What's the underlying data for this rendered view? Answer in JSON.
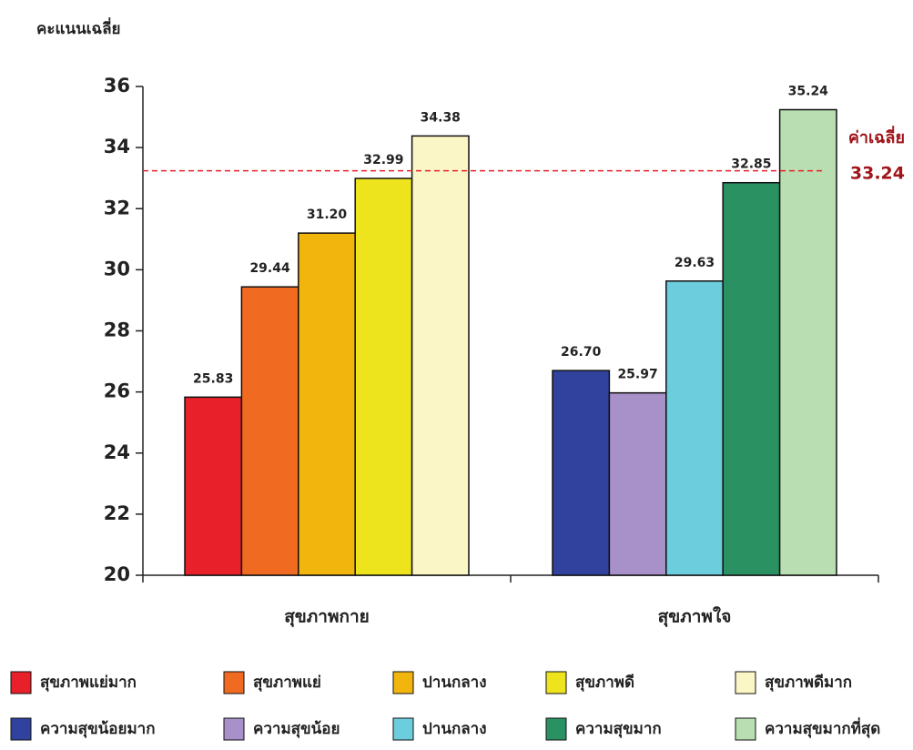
{
  "chart_data": {
    "type": "grouped-bar",
    "y_label": "คะแนนเฉลี่ย",
    "ylim": [
      20,
      36
    ],
    "yticks": [
      20,
      22,
      24,
      26,
      28,
      30,
      32,
      34,
      36
    ],
    "groups": [
      {
        "label": "สุขภาพกาย",
        "names": [
          "สุขภาพแย่มาก",
          "สุขภาพแย่",
          "ปานกลาง",
          "สุขภาพดี",
          "สุขภาพดีมาก"
        ],
        "colors": [
          "#e8202a",
          "#f06a21",
          "#f2b50e",
          "#eee41e",
          "#faf6c6"
        ],
        "values": [
          25.83,
          29.44,
          31.2,
          32.99,
          34.38
        ],
        "value_labels": [
          "25.83",
          "29.44",
          "31.20",
          "32.99",
          "34.38"
        ]
      },
      {
        "label": "สุขภาพใจ",
        "names": [
          "ความสุขน้อยมาก",
          "ความสุขน้อย",
          "ปานกลาง",
          "ความสุขมาก",
          "ความสุขมากที่สุด"
        ],
        "colors": [
          "#30429e",
          "#a890c8",
          "#6ccddc",
          "#2a9262",
          "#b9deb2"
        ],
        "values": [
          26.7,
          25.97,
          29.63,
          32.85,
          35.24
        ],
        "value_labels": [
          "26.70",
          "25.97",
          "29.63",
          "32.85",
          "35.24"
        ]
      }
    ],
    "reference": {
      "label": "ค่าเฉลี่ย",
      "value": 33.24,
      "color": "#e8202a"
    }
  }
}
